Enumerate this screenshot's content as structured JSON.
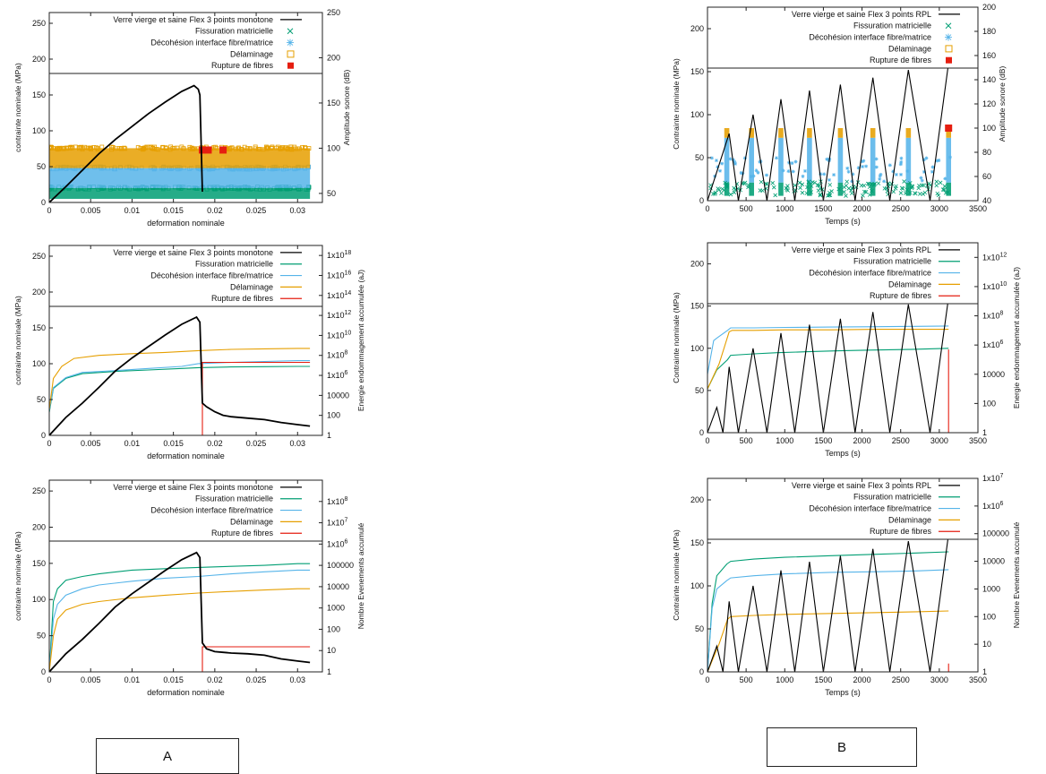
{
  "chart_data": [
    {
      "type": "scatter",
      "panel": "A-top",
      "xlabel": "deformation nominale",
      "ylabel": "contrainte nominale (MPa)",
      "y2label": "Amplitude sonore (dB)",
      "xlim": [
        0,
        0.033
      ],
      "ylim": [
        0,
        265
      ],
      "y2lim": [
        40,
        250
      ],
      "y2scale": "linear",
      "xticks": [
        "0",
        "0.005",
        "0.01",
        "0.015",
        "0.02",
        "0.025",
        "0.03"
      ],
      "yticks": [
        "0",
        "50",
        "100",
        "150",
        "200",
        "250"
      ],
      "y2ticks": [
        "50",
        "100",
        "150",
        "200",
        "250"
      ],
      "legend": [
        "Verre vierge et saine Flex 3 points monotone",
        "Fissuration matricielle",
        "Décohésion interface fibre/matrice",
        "Délaminage",
        "Rupture de fibres"
      ],
      "stress_curve": {
        "x": [
          0,
          0.002,
          0.004,
          0.006,
          0.008,
          0.01,
          0.012,
          0.014,
          0.016,
          0.0175,
          0.018,
          0.0182,
          0.0185
        ],
        "y": [
          0,
          22,
          45,
          68,
          88,
          106,
          124,
          140,
          155,
          163,
          158,
          150,
          15
        ]
      },
      "bands": [
        {
          "name": "Fissuration matricielle",
          "from": 44,
          "to": 56
        },
        {
          "name": "Décohésion interface fibre/matrice",
          "from": 56,
          "to": 78
        },
        {
          "name": "Délaminage",
          "from": 78,
          "to": 100
        }
      ],
      "points": {
        "name": "Rupture de fibres",
        "x": [
          0.0185,
          0.0192,
          0.021
        ],
        "y": [
          98,
          98,
          98
        ]
      }
    },
    {
      "type": "scatter",
      "panel": "B-top",
      "xlabel": "Temps (s)",
      "ylabel": "Contrainte nominale (MPa)",
      "y2label": "Amplitude sonore (dB)",
      "xlim": [
        0,
        3500
      ],
      "ylim": [
        0,
        225
      ],
      "y2lim": [
        40,
        200
      ],
      "y2scale": "linear",
      "xticks": [
        "0",
        "500",
        "1000",
        "1500",
        "2000",
        "2500",
        "3000",
        "3500"
      ],
      "yticks": [
        "0",
        "50",
        "100",
        "150",
        "200"
      ],
      "y2ticks": [
        "40",
        "60",
        "80",
        "100",
        "120",
        "140",
        "160",
        "180",
        "200"
      ],
      "legend": [
        "Verre vierge et saine Flex 3 points RPL",
        "Fissuration matricielle",
        "Décohésion interface fibre/matrice",
        "Délaminage",
        "Rupture de fibres"
      ],
      "stress_curve": {
        "x": [
          0,
          280,
          400,
          590,
          770,
          950,
          1130,
          1320,
          1500,
          1720,
          1910,
          2140,
          2360,
          2600,
          2880,
          3120
        ],
        "y": [
          0,
          78,
          0,
          100,
          0,
          118,
          0,
          128,
          0,
          135,
          0,
          143,
          0,
          152,
          0,
          160
        ]
      },
      "cluster_times": [
        250,
        570,
        950,
        1320,
        1720,
        2140,
        2600,
        3120
      ],
      "bands": [
        {
          "name": "Fissuration matricielle",
          "from": 44,
          "to": 55
        },
        {
          "name": "Décohésion interface fibre/matrice",
          "from": 55,
          "to": 92
        },
        {
          "name": "Délaminage",
          "from": 92,
          "to": 100
        }
      ],
      "points": {
        "name": "Rupture de fibres",
        "x": [
          3120
        ],
        "y": [
          100
        ]
      }
    },
    {
      "type": "line",
      "panel": "A-middle",
      "xlabel": "deformation nominale",
      "ylabel": "contrainte nominale (MPa)",
      "y2label": "Energie endommagement accumulée (aJ)",
      "xlim": [
        0,
        0.033
      ],
      "ylim": [
        0,
        265
      ],
      "y2lim": [
        1,
        1e+19
      ],
      "y2scale": "log",
      "xticks": [
        "0",
        "0.005",
        "0.01",
        "0.015",
        "0.02",
        "0.025",
        "0.03"
      ],
      "yticks": [
        "0",
        "50",
        "100",
        "150",
        "200",
        "250"
      ],
      "y2ticks": [
        "1",
        "100",
        "10000",
        "1x10^6",
        "1x10^8",
        "1x10^10",
        "1x10^12",
        "1x10^14",
        "1x10^16",
        "1x10^18"
      ],
      "legend": [
        "Verre vierge et saine Flex 3 points monotone",
        "Fissuration matricielle",
        "Décohésion interface fibre/matrice",
        "Délaminage",
        "Rupture de fibres"
      ],
      "stress_curve": {
        "x": [
          0,
          0.002,
          0.004,
          0.006,
          0.008,
          0.01,
          0.012,
          0.014,
          0.016,
          0.0178,
          0.0182,
          0.0185,
          0.019,
          0.02,
          0.021,
          0.022,
          0.024,
          0.026,
          0.028,
          0.03,
          0.0315
        ],
        "y": [
          0,
          25,
          45,
          67,
          90,
          108,
          124,
          140,
          155,
          165,
          158,
          45,
          40,
          33,
          28,
          26,
          24,
          22,
          18,
          15,
          13
        ]
      },
      "series": [
        {
          "name": "Fissuration matricielle",
          "x": [
            0,
            0.0005,
            0.002,
            0.004,
            0.008,
            0.012,
            0.016,
            0.018,
            0.022,
            0.026,
            0.03,
            0.0315
          ],
          "y": [
            200,
            50000,
            500000,
            1500000,
            2500000,
            3500000,
            5000000,
            6000000,
            7000000,
            7500000,
            8000000,
            8000000
          ]
        },
        {
          "name": "Décohésion interface fibre/matrice",
          "x": [
            0,
            0.0005,
            0.002,
            0.004,
            0.008,
            0.012,
            0.016,
            0.018,
            0.022,
            0.026,
            0.03,
            0.0315
          ],
          "y": [
            300,
            60000,
            600000,
            2000000,
            3000000,
            5000000,
            8000000,
            15000000,
            20000000,
            25000000,
            30000000,
            30000000
          ]
        },
        {
          "name": "Délaminage",
          "x": [
            0,
            0.0005,
            0.0015,
            0.003,
            0.006,
            0.01,
            0.014,
            0.018,
            0.022,
            0.026,
            0.03,
            0.0315
          ],
          "y": [
            400,
            500000,
            8000000,
            50000000,
            100000000,
            150000000,
            200000000,
            300000000,
            400000000,
            450000000,
            500000000,
            500000000
          ]
        },
        {
          "name": "Rupture de fibres",
          "x": [
            0.0185,
            0.0185,
            0.0315
          ],
          "y": [
            1,
            20000000,
            20000000
          ]
        }
      ]
    },
    {
      "type": "line",
      "panel": "B-middle",
      "xlabel": "Temps (s)",
      "ylabel": "Contrainte nominale (MPa)",
      "y2label": "Energie endommagement accumulée (aJ)",
      "xlim": [
        0,
        3500
      ],
      "ylim": [
        0,
        225
      ],
      "y2lim": [
        1,
        10000000000000.0
      ],
      "y2scale": "log",
      "xticks": [
        "0",
        "500",
        "1000",
        "1500",
        "2000",
        "2500",
        "3000",
        "3500"
      ],
      "yticks": [
        "0",
        "50",
        "100",
        "150",
        "200"
      ],
      "y2ticks": [
        "1",
        "100",
        "10000",
        "1x10^6",
        "1x10^8",
        "1x10^10",
        "1x10^12"
      ],
      "legend": [
        "Verre vierge et saine Flex 3 points RPL",
        "Fissuration matricielle",
        "Décohésion interface fibre/matrice",
        "Délaminage",
        "Rupture de fibres"
      ],
      "stress_curve": {
        "x": [
          0,
          120,
          200,
          280,
          400,
          590,
          770,
          950,
          1130,
          1320,
          1500,
          1720,
          1910,
          2140,
          2360,
          2600,
          2880,
          3120
        ],
        "y": [
          0,
          30,
          0,
          78,
          0,
          100,
          0,
          118,
          0,
          128,
          0,
          135,
          0,
          143,
          0,
          152,
          0,
          160
        ]
      },
      "series": [
        {
          "name": "Fissuration matricielle",
          "x": [
            0,
            120,
            260,
            300,
            600,
            900,
            1300,
            1700,
            2100,
            2600,
            3120
          ],
          "y": [
            1000,
            20000,
            100000,
            200000,
            250000,
            300000,
            350000,
            400000,
            450000,
            500000,
            600000
          ]
        },
        {
          "name": "Décohésion interface fibre/matrice",
          "x": [
            0,
            80,
            120,
            260,
            300,
            600,
            1000,
            1600,
            2200,
            2700,
            3120
          ],
          "y": [
            10000,
            2000000,
            3000000,
            10000000,
            15000000,
            15000000,
            16000000,
            17000000,
            18000000,
            19000000,
            20000000
          ]
        },
        {
          "name": "Délaminage",
          "x": [
            0,
            150,
            280,
            320,
            600,
            1000,
            1600,
            2200,
            2700,
            3120
          ],
          "y": [
            1000,
            50000,
            8000000,
            10000000,
            10000000,
            11000000,
            11000000,
            12000000,
            12000000,
            12000000
          ]
        },
        {
          "name": "Rupture de fibres",
          "x": [
            3120,
            3120
          ],
          "y": [
            1,
            500000
          ]
        }
      ]
    },
    {
      "type": "line",
      "panel": "A-bottom",
      "xlabel": "deformation nominale",
      "ylabel": "contrainte nominale (MPa)",
      "y2label": "Nombre Evenements accumulé",
      "xlim": [
        0,
        0.033
      ],
      "ylim": [
        0,
        265
      ],
      "y2lim": [
        1,
        1000000000.0
      ],
      "y2scale": "log",
      "xticks": [
        "0",
        "0.005",
        "0.01",
        "0.015",
        "0.02",
        "0.025",
        "0.03"
      ],
      "yticks": [
        "0",
        "50",
        "100",
        "150",
        "200",
        "250"
      ],
      "y2ticks": [
        "1",
        "10",
        "100",
        "1000",
        "10000",
        "100000",
        "1x10^6",
        "1x10^7",
        "1x10^8"
      ],
      "legend": [
        "Verre vierge et saine Flex 3 points monotone",
        "Fissuration matricielle",
        "Décohésion interface fibre/matrice",
        "Délaminage",
        "Rupture de fibres"
      ],
      "stress_curve": {
        "x": [
          0,
          0.002,
          0.004,
          0.006,
          0.008,
          0.01,
          0.012,
          0.014,
          0.016,
          0.0178,
          0.0182,
          0.0185,
          0.019,
          0.02,
          0.021,
          0.022,
          0.024,
          0.026,
          0.028,
          0.03,
          0.0315
        ],
        "y": [
          0,
          25,
          45,
          67,
          90,
          108,
          124,
          140,
          155,
          165,
          158,
          40,
          32,
          28,
          27,
          26,
          25,
          23,
          18,
          15,
          13
        ]
      },
      "series": [
        {
          "name": "Fissuration matricielle",
          "x": [
            0,
            0.0005,
            0.001,
            0.002,
            0.004,
            0.006,
            0.01,
            0.014,
            0.018,
            0.022,
            0.026,
            0.03,
            0.0315
          ],
          "y": [
            1,
            2000,
            8000,
            20000,
            30000,
            40000,
            60000,
            70000,
            80000,
            90000,
            100000,
            120000,
            120000
          ]
        },
        {
          "name": "Décohésion interface fibre/matrice",
          "x": [
            0,
            0.0005,
            0.001,
            0.002,
            0.004,
            0.006,
            0.01,
            0.014,
            0.018,
            0.022,
            0.026,
            0.03,
            0.0315
          ],
          "y": [
            1,
            300,
            1500,
            4000,
            8000,
            12000,
            18000,
            25000,
            30000,
            40000,
            50000,
            60000,
            60000
          ]
        },
        {
          "name": "Délaminage",
          "x": [
            0,
            0.0005,
            0.001,
            0.002,
            0.004,
            0.006,
            0.01,
            0.014,
            0.018,
            0.022,
            0.026,
            0.03,
            0.0315
          ],
          "y": [
            1,
            50,
            300,
            800,
            1500,
            2000,
            3000,
            4000,
            5000,
            6000,
            7000,
            8000,
            8000
          ]
        },
        {
          "name": "Rupture de fibres",
          "x": [
            0.0185,
            0.0185,
            0.0315
          ],
          "y": [
            1,
            15,
            15
          ]
        }
      ]
    },
    {
      "type": "line",
      "panel": "B-bottom",
      "xlabel": "Temps (s)",
      "ylabel": "Contrainte nominale (MPa)",
      "y2label": "Nombre Evenements accumulé",
      "xlim": [
        0,
        3500
      ],
      "ylim": [
        0,
        225
      ],
      "y2lim": [
        1,
        10000000.0
      ],
      "y2scale": "log",
      "xticks": [
        "0",
        "500",
        "1000",
        "1500",
        "2000",
        "2500",
        "3000",
        "3500"
      ],
      "yticks": [
        "0",
        "50",
        "100",
        "150",
        "200"
      ],
      "y2ticks": [
        "1",
        "10",
        "100",
        "1000",
        "10000",
        "100000",
        "1x10^6",
        "1x10^7"
      ],
      "legend": [
        "Verre vierge et saine Flex 3 points RPL",
        "Fissuration matricielle",
        "Décohésion interface fibre/matrice",
        "Délaminage",
        "Rupture de fibres"
      ],
      "stress_curve": {
        "x": [
          0,
          120,
          200,
          280,
          400,
          590,
          770,
          950,
          1130,
          1320,
          1500,
          1720,
          1910,
          2140,
          2360,
          2600,
          2880,
          3120
        ],
        "y": [
          0,
          30,
          0,
          82,
          0,
          100,
          0,
          118,
          0,
          128,
          0,
          135,
          0,
          143,
          0,
          152,
          0,
          160
        ]
      },
      "series": [
        {
          "name": "Fissuration matricielle",
          "x": [
            0,
            60,
            120,
            250,
            300,
            600,
            1000,
            1600,
            2200,
            2700,
            3120
          ],
          "y": [
            1,
            300,
            3000,
            8000,
            10000,
            12000,
            14000,
            16000,
            18000,
            20000,
            22000
          ]
        },
        {
          "name": "Décohésion interface fibre/matrice",
          "x": [
            0,
            60,
            120,
            250,
            300,
            600,
            1000,
            1600,
            2200,
            2700,
            3120
          ],
          "y": [
            1,
            200,
            1000,
            2000,
            2500,
            3000,
            3500,
            4000,
            4200,
            4500,
            5000
          ]
        },
        {
          "name": "Délaminage",
          "x": [
            0,
            150,
            260,
            300,
            600,
            1000,
            1600,
            2200,
            2700,
            3120
          ],
          "y": [
            1,
            10,
            80,
            100,
            110,
            120,
            130,
            140,
            150,
            160
          ]
        },
        {
          "name": "Rupture de fibres",
          "x": [
            3120,
            3120
          ],
          "y": [
            1,
            2
          ]
        }
      ]
    }
  ],
  "labels": {
    "a": "A",
    "b": "B"
  },
  "colors": {
    "stress": "#000000",
    "fissuration": "#009e73",
    "decohesion": "#56b4e9",
    "delaminage": "#e69f00",
    "rupture": "#e51e10"
  }
}
